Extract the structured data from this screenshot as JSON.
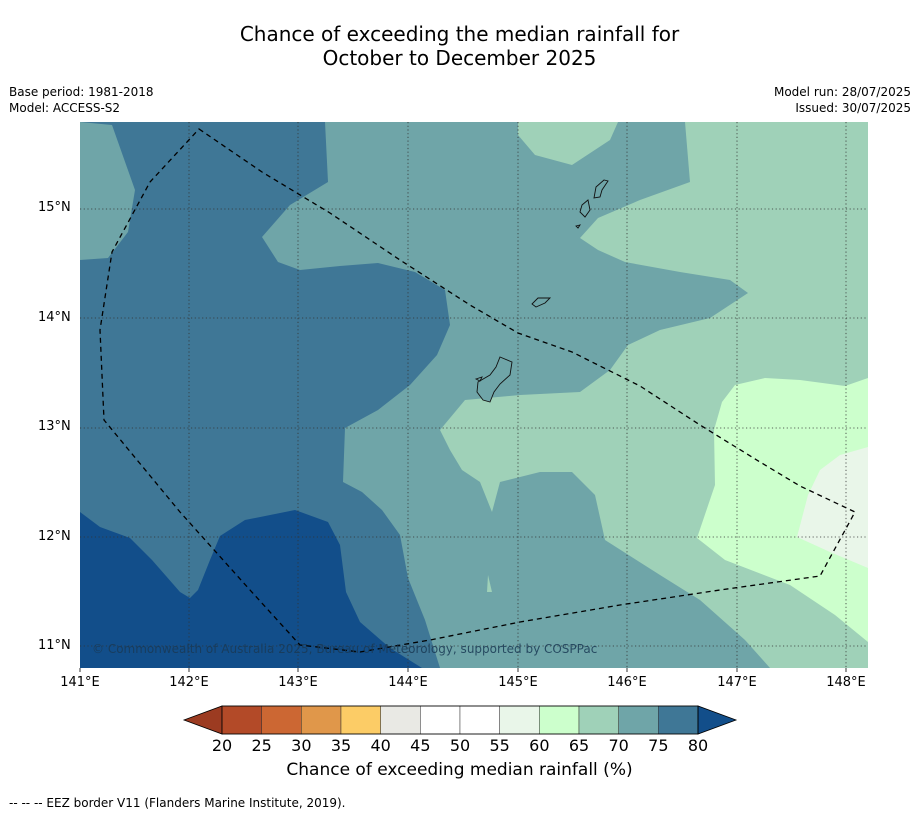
{
  "title": {
    "line1": "Chance of exceeding the median rainfall for",
    "line2": "October to December 2025"
  },
  "meta_left": {
    "base_period": "Base period: 1981-2018",
    "model": "Model: ACCESS-S2"
  },
  "meta_right": {
    "model_run": "Model run: 28/07/2025",
    "issued": "Issued: 30/07/2025"
  },
  "map": {
    "lon_range": [
      141.0,
      148.2
    ],
    "lat_range": [
      10.8,
      15.8
    ],
    "lon_ticks": [
      "141°E",
      "142°E",
      "143°E",
      "144°E",
      "145°E",
      "146°E",
      "147°E",
      "148°E"
    ],
    "lat_ticks": [
      "15°N",
      "14°N",
      "13°N",
      "12°N",
      "11°N"
    ],
    "grid": "dotted",
    "copyright": "© Commonwealth of Australia 2025, Bureau of Meteorology, supported by COSPPac",
    "border_line": "dashed"
  },
  "colorbar": {
    "levels": [
      "20",
      "25",
      "30",
      "35",
      "40",
      "45",
      "50",
      "55",
      "60",
      "65",
      "70",
      "75",
      "80"
    ],
    "colors": [
      "#9c3b21",
      "#b34a28",
      "#cc6733",
      "#e0974a",
      "#fccc66",
      "#e9e9e4",
      "#ffffff",
      "#ffffff",
      "#e9f6e9",
      "#ccffcc",
      "#9fd1b8",
      "#6fa5a8",
      "#3f7796",
      "#124e8a"
    ],
    "label": "Chance of exceeding median rainfall (%)"
  },
  "footnote": "--  --  -- EEZ border V11 (Flanders Marine Institute, 2019)."
}
